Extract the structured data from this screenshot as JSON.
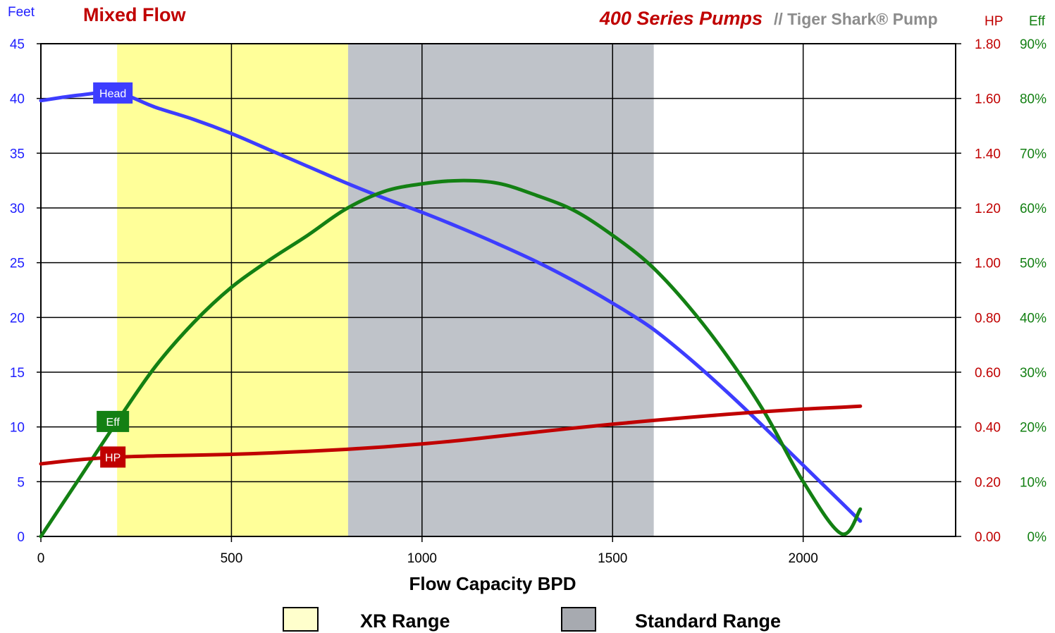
{
  "chart_data": {
    "type": "line",
    "title": "Mixed Flow",
    "subtitle": "400 Series Pumps",
    "brand": "// Tiger Shark® Pump",
    "xlabel": "Flow Capacity BPD",
    "xlim": [
      0,
      2400
    ],
    "x_ticks": [
      0,
      500,
      1000,
      1500,
      2000
    ],
    "y_left": {
      "label": "Feet",
      "lim": [
        0,
        45
      ],
      "ticks": [
        0,
        5,
        10,
        15,
        20,
        25,
        30,
        35,
        40,
        45
      ]
    },
    "y_right_hp": {
      "label": "HP",
      "lim": [
        0,
        1.8
      ],
      "ticks": [
        "0.00",
        "0.20",
        "0.40",
        "0.60",
        "0.80",
        "1.00",
        "1.20",
        "1.40",
        "1.60",
        "1.80"
      ]
    },
    "y_right_eff": {
      "label": "Eff",
      "lim": [
        0,
        90
      ],
      "ticks": [
        "0%",
        "10%",
        "20%",
        "30%",
        "40%",
        "50%",
        "60%",
        "70%",
        "80%",
        "90%"
      ]
    },
    "grid": true,
    "ranges": [
      {
        "name": "XR Range",
        "from": 200,
        "to": 806,
        "color": "#ffff99"
      },
      {
        "name": "Standard Range",
        "from": 806,
        "to": 1608,
        "color": "#bfc3c9"
      }
    ],
    "series": [
      {
        "name": "Head",
        "axis": "feet",
        "color": "#3d3dff",
        "label_x": 200,
        "x": [
          0,
          100,
          200,
          300,
          400,
          500,
          600,
          700,
          800,
          900,
          1000,
          1100,
          1200,
          1300,
          1400,
          1500,
          1600,
          1700,
          1800,
          1900,
          2000,
          2100,
          2150
        ],
        "y": [
          39.8,
          40.3,
          40.5,
          39.2,
          38.1,
          36.8,
          35.3,
          33.8,
          32.3,
          30.9,
          29.6,
          28.2,
          26.7,
          25.1,
          23.3,
          21.3,
          19.1,
          16.3,
          13.2,
          9.9,
          6.5,
          3.1,
          1.4
        ]
      },
      {
        "name": "Eff",
        "axis": "eff",
        "color": "#138013",
        "label_x": 200,
        "x": [
          0,
          100,
          200,
          300,
          400,
          500,
          600,
          700,
          800,
          900,
          1000,
          1100,
          1200,
          1300,
          1400,
          1500,
          1600,
          1700,
          1800,
          1900,
          2000,
          2100,
          2150
        ],
        "y": [
          0,
          10.5,
          21,
          31,
          39,
          45.5,
          50.5,
          55,
          59.8,
          63,
          64.4,
          65,
          64.5,
          62.3,
          59.5,
          55,
          49.5,
          42,
          33,
          22.5,
          10,
          0.5,
          5
        ]
      },
      {
        "name": "HP",
        "axis": "hp",
        "color": "#c00000",
        "label_x": 200,
        "x": [
          0,
          100,
          200,
          300,
          400,
          500,
          600,
          700,
          800,
          900,
          1000,
          1100,
          1200,
          1300,
          1400,
          1500,
          1600,
          1700,
          1800,
          1900,
          2000,
          2100,
          2150
        ],
        "y": [
          0.265,
          0.28,
          0.29,
          0.294,
          0.297,
          0.3,
          0.305,
          0.311,
          0.318,
          0.327,
          0.338,
          0.351,
          0.366,
          0.381,
          0.396,
          0.41,
          0.423,
          0.435,
          0.446,
          0.456,
          0.465,
          0.472,
          0.476
        ]
      }
    ]
  }
}
